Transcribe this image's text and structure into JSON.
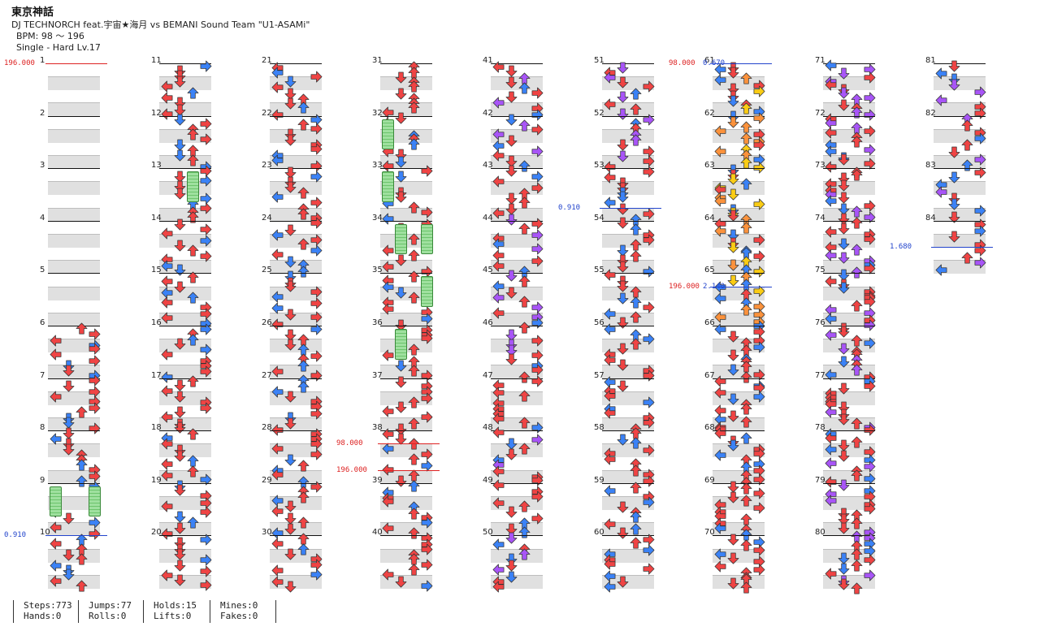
{
  "header": {
    "title": "東京神話",
    "artist_line": "DJ TECHNORCH feat.宇宙★海月 vs BEMANI Sound Team \"U1-ASAMi\"",
    "bpm": "BPM: 98 ～ 196",
    "difficulty": "Single - Hard  Lv.17"
  },
  "stats": [
    {
      "top": "Steps:773",
      "bottom": "Hands:0"
    },
    {
      "top": "Jumps:77",
      "bottom": "Rolls:0"
    },
    {
      "top": "Holds:15",
      "bottom": "Lifts:0"
    },
    {
      "top": "Mines:0",
      "bottom": "Fakes:0"
    }
  ],
  "total_measures": 84,
  "measures_per_column": 10,
  "colors": {
    "red": "#ef4444",
    "blue": "#3b82f6",
    "purple": "#a855f7",
    "yellow": "#facc15",
    "orange": "#fb923c",
    "green_hold": "#86d886",
    "bpm_marker": "#dd2222",
    "scroll_marker": "#2244cc"
  },
  "gimmicks": [
    {
      "measure": 1,
      "side": "left",
      "label": "196.000",
      "kind": "bpm"
    },
    {
      "measure": 10,
      "side": "left",
      "label": "0.910",
      "kind": "scroll"
    },
    {
      "measure": 38.25,
      "side": "left",
      "label": "98.000",
      "kind": "bpm"
    },
    {
      "measure": 38.75,
      "side": "left",
      "label": "196.000",
      "kind": "bpm"
    },
    {
      "measure": 53.75,
      "side": "left",
      "label": "0.910",
      "kind": "scroll"
    },
    {
      "measure": 61,
      "side": "left",
      "label": "98.000",
      "kind": "bpm"
    },
    {
      "measure": 61,
      "side": "left2",
      "label": "0.670",
      "kind": "scroll"
    },
    {
      "measure": 65.25,
      "side": "left",
      "label": "196.000",
      "kind": "bpm"
    },
    {
      "measure": 65.25,
      "side": "left2",
      "label": "2.140",
      "kind": "scroll"
    },
    {
      "measure": 84.5,
      "side": "left",
      "label": "1.680",
      "kind": "scroll"
    }
  ]
}
